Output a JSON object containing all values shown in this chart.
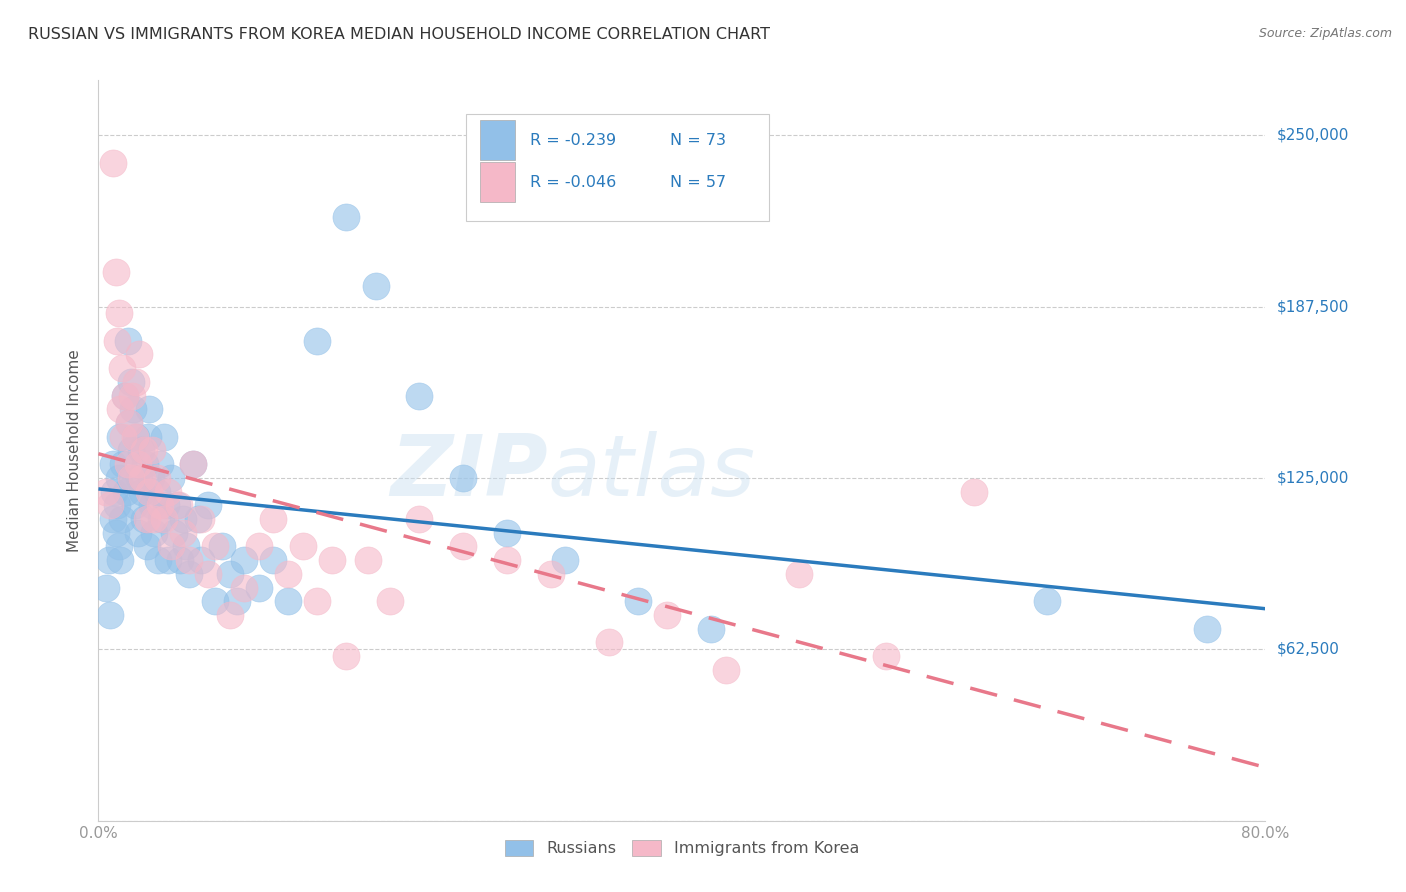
{
  "title": "RUSSIAN VS IMMIGRANTS FROM KOREA MEDIAN HOUSEHOLD INCOME CORRELATION CHART",
  "source": "Source: ZipAtlas.com",
  "ylabel": "Median Household Income",
  "yticks": [
    0,
    62500,
    125000,
    187500,
    250000
  ],
  "ytick_labels": [
    "",
    "$62,500",
    "$125,000",
    "$187,500",
    "$250,000"
  ],
  "xlim": [
    0.0,
    0.8
  ],
  "ylim": [
    0,
    270000
  ],
  "legend_r1": "-0.239",
  "legend_n1": "73",
  "legend_r2": "-0.046",
  "legend_n2": "57",
  "legend_label1": "Russians",
  "legend_label2": "Immigrants from Korea",
  "blue_color": "#92C0E8",
  "pink_color": "#F5B8C8",
  "blue_line_color": "#2B7BBD",
  "pink_line_color": "#E8788A",
  "title_color": "#333333",
  "axis_color": "#999999",
  "grid_color": "#CCCCCC",
  "source_color": "#777777",
  "label_color": "#555555",
  "russians_x": [
    0.005,
    0.007,
    0.008,
    0.01,
    0.01,
    0.011,
    0.012,
    0.013,
    0.014,
    0.014,
    0.015,
    0.015,
    0.016,
    0.017,
    0.018,
    0.019,
    0.02,
    0.021,
    0.022,
    0.022,
    0.023,
    0.024,
    0.025,
    0.026,
    0.027,
    0.028,
    0.029,
    0.03,
    0.031,
    0.032,
    0.033,
    0.034,
    0.035,
    0.036,
    0.037,
    0.038,
    0.04,
    0.041,
    0.042,
    0.043,
    0.045,
    0.046,
    0.048,
    0.05,
    0.052,
    0.054,
    0.056,
    0.058,
    0.06,
    0.062,
    0.065,
    0.068,
    0.07,
    0.075,
    0.08,
    0.085,
    0.09,
    0.095,
    0.1,
    0.11,
    0.12,
    0.13,
    0.15,
    0.17,
    0.19,
    0.22,
    0.25,
    0.28,
    0.32,
    0.37,
    0.42,
    0.65,
    0.76
  ],
  "russians_y": [
    85000,
    95000,
    75000,
    110000,
    130000,
    120000,
    105000,
    115000,
    125000,
    100000,
    140000,
    95000,
    110000,
    130000,
    155000,
    120000,
    175000,
    145000,
    160000,
    135000,
    125000,
    150000,
    115000,
    140000,
    105000,
    125000,
    135000,
    120000,
    110000,
    130000,
    100000,
    140000,
    150000,
    125000,
    115000,
    105000,
    120000,
    95000,
    130000,
    110000,
    140000,
    115000,
    95000,
    125000,
    105000,
    115000,
    95000,
    110000,
    100000,
    90000,
    130000,
    110000,
    95000,
    115000,
    80000,
    100000,
    90000,
    80000,
    95000,
    85000,
    95000,
    80000,
    175000,
    220000,
    195000,
    155000,
    125000,
    105000,
    95000,
    80000,
    70000,
    80000,
    70000
  ],
  "korea_x": [
    0.005,
    0.008,
    0.01,
    0.012,
    0.013,
    0.014,
    0.015,
    0.016,
    0.017,
    0.018,
    0.02,
    0.021,
    0.022,
    0.023,
    0.025,
    0.026,
    0.027,
    0.028,
    0.03,
    0.031,
    0.033,
    0.035,
    0.037,
    0.038,
    0.04,
    0.042,
    0.045,
    0.048,
    0.05,
    0.055,
    0.058,
    0.062,
    0.065,
    0.07,
    0.075,
    0.08,
    0.09,
    0.1,
    0.11,
    0.12,
    0.13,
    0.14,
    0.15,
    0.16,
    0.17,
    0.185,
    0.2,
    0.22,
    0.25,
    0.28,
    0.31,
    0.35,
    0.39,
    0.43,
    0.48,
    0.54,
    0.6
  ],
  "korea_y": [
    120000,
    115000,
    240000,
    200000,
    175000,
    185000,
    150000,
    165000,
    140000,
    155000,
    130000,
    145000,
    125000,
    155000,
    140000,
    160000,
    130000,
    170000,
    125000,
    135000,
    110000,
    120000,
    135000,
    110000,
    125000,
    115000,
    110000,
    120000,
    100000,
    115000,
    105000,
    95000,
    130000,
    110000,
    90000,
    100000,
    75000,
    85000,
    100000,
    110000,
    90000,
    100000,
    80000,
    95000,
    60000,
    95000,
    80000,
    110000,
    100000,
    95000,
    90000,
    65000,
    75000,
    55000,
    90000,
    60000,
    120000
  ]
}
